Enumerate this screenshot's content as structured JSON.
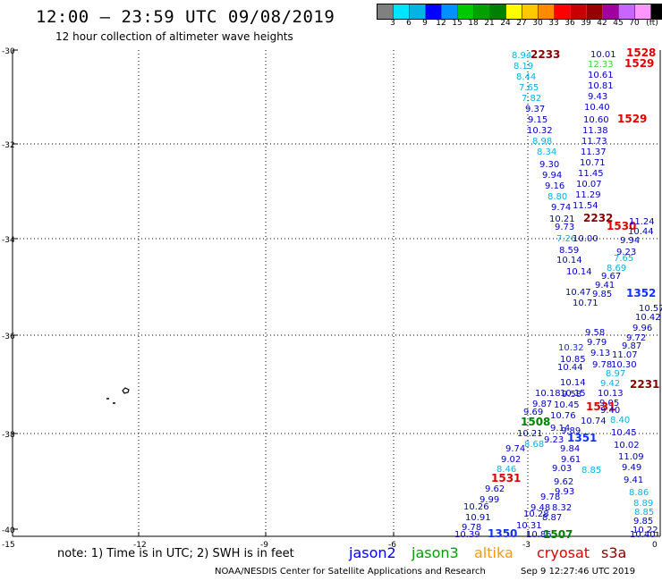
{
  "header": {
    "title": "12:00 — 23:59 UTC 09/08/2019",
    "subtitle": "12 hour collection of altimeter wave heights"
  },
  "legend": {
    "colors": [
      "#808080",
      "#00e5ff",
      "#00b4e6",
      "#0000ff",
      "#0090ff",
      "#00c800",
      "#00a000",
      "#008000",
      "#ffff00",
      "#ffc800",
      "#ff8c00",
      "#ff0000",
      "#c80000",
      "#960000",
      "#a000a0",
      "#c864ff",
      "#ff96ff",
      "#000000"
    ],
    "labels": [
      "3",
      "6",
      "9",
      "12",
      "15",
      "18",
      "21",
      "24",
      "27",
      "30",
      "33",
      "36",
      "39",
      "42",
      "45",
      "70",
      "(ft)"
    ]
  },
  "axes": {
    "lat_labels": [
      "-30",
      "-32",
      "-34",
      "-36",
      "-38",
      "-40"
    ],
    "lon_labels": [
      "-15",
      "-12",
      "-9",
      "-6",
      "-3",
      "0"
    ]
  },
  "colors": {
    "c9": "#00b4e6",
    "c12": "#0000c8",
    "c15": "#1030ff",
    "green": "#40d040",
    "dkgreen": "#008000",
    "red": "#e00000",
    "dkred": "#8b0000"
  },
  "observations": [
    {
      "t": "8.94",
      "c": "c9"
    },
    {
      "t": "2233",
      "c": "dkred"
    },
    {
      "t": "10.01",
      "c": "c12"
    },
    {
      "t": "1528",
      "c": "red"
    },
    {
      "t": "8.19",
      "c": "c9"
    },
    {
      "t": "12.33",
      "c": "green"
    },
    {
      "t": "1529",
      "c": "red"
    },
    {
      "t": "8.44",
      "c": "c9"
    },
    {
      "t": "10.61",
      "c": "c12"
    },
    {
      "t": "7.65",
      "c": "c9"
    },
    {
      "t": "10.81",
      "c": "c12"
    },
    {
      "t": "7.82",
      "c": "c9"
    },
    {
      "t": "9.43",
      "c": "c12"
    },
    {
      "t": "9.37",
      "c": "c12"
    },
    {
      "t": "10.40",
      "c": "c12"
    },
    {
      "t": "9.15",
      "c": "c12"
    },
    {
      "t": "10.60",
      "c": "c12"
    },
    {
      "t": "1529",
      "c": "red"
    },
    {
      "t": "10.32",
      "c": "c12"
    },
    {
      "t": "11.38",
      "c": "c12"
    },
    {
      "t": "8.98",
      "c": "c9"
    },
    {
      "t": "11.73",
      "c": "c12"
    },
    {
      "t": "8.34",
      "c": "c9"
    },
    {
      "t": "11.37",
      "c": "c12"
    },
    {
      "t": "9.30",
      "c": "c12"
    },
    {
      "t": "10.71",
      "c": "c12"
    },
    {
      "t": "9.94",
      "c": "c12"
    },
    {
      "t": "11.45",
      "c": "c12"
    },
    {
      "t": "9.16",
      "c": "c12"
    },
    {
      "t": "10.07",
      "c": "c12"
    },
    {
      "t": "8.80",
      "c": "c9"
    },
    {
      "t": "11.29",
      "c": "c12"
    },
    {
      "t": "9.74",
      "c": "c12"
    },
    {
      "t": "11.54",
      "c": "c12"
    },
    {
      "t": "10.21",
      "c": "c12"
    },
    {
      "t": "2232",
      "c": "dkred"
    },
    {
      "t": "9.73",
      "c": "c12"
    },
    {
      "t": "1530",
      "c": "red"
    },
    {
      "t": "11.24",
      "c": "c12"
    },
    {
      "t": "7.26",
      "c": "c9"
    },
    {
      "t": "10.44",
      "c": "c12"
    },
    {
      "t": "10.00",
      "c": "c12"
    },
    {
      "t": "9.94",
      "c": "c12"
    },
    {
      "t": "8.59",
      "c": "c12"
    },
    {
      "t": "9.23",
      "c": "c12"
    },
    {
      "t": "10.14",
      "c": "c12"
    },
    {
      "t": "7.65",
      "c": "c9"
    },
    {
      "t": "8.69",
      "c": "c9"
    },
    {
      "t": "10.14",
      "c": "c12"
    },
    {
      "t": "9.67",
      "c": "c12"
    },
    {
      "t": "9.41",
      "c": "c12"
    },
    {
      "t": "10.47",
      "c": "c12"
    },
    {
      "t": "9.85",
      "c": "c12"
    },
    {
      "t": "1352",
      "c": "c15"
    },
    {
      "t": "10.71",
      "c": "c12"
    },
    {
      "t": "10.57",
      "c": "c12"
    },
    {
      "t": "10.42",
      "c": "c12"
    },
    {
      "t": "9.96",
      "c": "c12"
    },
    {
      "t": "9.58",
      "c": "c12"
    },
    {
      "t": "9.72",
      "c": "c12"
    },
    {
      "t": "9.79",
      "c": "c12"
    },
    {
      "t": "9.87",
      "c": "c12"
    },
    {
      "t": "10.32",
      "c": "c15"
    },
    {
      "t": "9.13",
      "c": "c12"
    },
    {
      "t": "11.07",
      "c": "c12"
    },
    {
      "t": "10.85",
      "c": "c12"
    },
    {
      "t": "9.78",
      "c": "c12"
    },
    {
      "t": "10.30",
      "c": "c12"
    },
    {
      "t": "10.44",
      "c": "c12"
    },
    {
      "t": "8.97",
      "c": "c9"
    },
    {
      "t": "10.14",
      "c": "c12"
    },
    {
      "t": "9.58",
      "c": "c12"
    },
    {
      "t": "9.42",
      "c": "c9"
    },
    {
      "t": "2231",
      "c": "dkred"
    },
    {
      "t": "10.18",
      "c": "c12"
    },
    {
      "t": "10.15",
      "c": "c12"
    },
    {
      "t": "10.13",
      "c": "c12"
    },
    {
      "t": "9.05",
      "c": "c12"
    },
    {
      "t": "9.87",
      "c": "c12"
    },
    {
      "t": "10.45",
      "c": "c12"
    },
    {
      "t": "1531",
      "c": "red"
    },
    {
      "t": "9.40",
      "c": "c12"
    },
    {
      "t": "9.69",
      "c": "c12"
    },
    {
      "t": "10.76",
      "c": "c12"
    },
    {
      "t": "10.74",
      "c": "c12"
    },
    {
      "t": "8.40",
      "c": "c9"
    },
    {
      "t": "1508",
      "c": "dkgreen"
    },
    {
      "t": "9.14",
      "c": "c12"
    },
    {
      "t": "10.21",
      "c": "c12"
    },
    {
      "t": "9.89",
      "c": "c12"
    },
    {
      "t": "10.45",
      "c": "c12"
    },
    {
      "t": "8.68",
      "c": "c9"
    },
    {
      "t": "9.23",
      "c": "c12"
    },
    {
      "t": "1351",
      "c": "c15"
    },
    {
      "t": "10.02",
      "c": "c12"
    },
    {
      "t": "9.74",
      "c": "c12"
    },
    {
      "t": "9.84",
      "c": "c12"
    },
    {
      "t": "11.09",
      "c": "c12"
    },
    {
      "t": "9.02",
      "c": "c12"
    },
    {
      "t": "9.61",
      "c": "c12"
    },
    {
      "t": "9.49",
      "c": "c12"
    },
    {
      "t": "8.46",
      "c": "c9"
    },
    {
      "t": "9.03",
      "c": "c12"
    },
    {
      "t": "8.85",
      "c": "c9"
    },
    {
      "t": "1531",
      "c": "red"
    },
    {
      "t": "9.62",
      "c": "c12"
    },
    {
      "t": "9.41",
      "c": "c12"
    },
    {
      "t": "9.62",
      "c": "c12"
    },
    {
      "t": "9.93",
      "c": "c12"
    },
    {
      "t": "8.86",
      "c": "c9"
    },
    {
      "t": "9.99",
      "c": "c12"
    },
    {
      "t": "9.78",
      "c": "c12"
    },
    {
      "t": "8.89",
      "c": "c9"
    },
    {
      "t": "10.26",
      "c": "c12"
    },
    {
      "t": "9.48",
      "c": "c12"
    },
    {
      "t": "8.32",
      "c": "c12"
    },
    {
      "t": "8.85",
      "c": "c9"
    },
    {
      "t": "10.91",
      "c": "c12"
    },
    {
      "t": "10.28",
      "c": "c12"
    },
    {
      "t": "8.87",
      "c": "c12"
    },
    {
      "t": "9.85",
      "c": "c12"
    },
    {
      "t": "9.78",
      "c": "c12"
    },
    {
      "t": "10.31",
      "c": "c12"
    },
    {
      "t": "10.22",
      "c": "c12"
    },
    {
      "t": "10.39",
      "c": "c12"
    },
    {
      "t": "1350",
      "c": "c15"
    },
    {
      "t": "10.85",
      "c": "c12"
    },
    {
      "t": "1507",
      "c": "dkgreen"
    },
    {
      "t": "10.40",
      "c": "c12"
    }
  ],
  "footer": {
    "note": "note:  1) Time is in UTC;  2) SWH is in feet",
    "satellites": [
      {
        "name": "jason2",
        "color": "#0000ff"
      },
      {
        "name": "jason3",
        "color": "#00a000"
      },
      {
        "name": "altika",
        "color": "#ff9900"
      },
      {
        "name": "cryosat",
        "color": "#e00000"
      },
      {
        "name": "s3a",
        "color": "#8b0000"
      }
    ],
    "credit": "NOAA/NESDIS Center for Satellite Applications and Research",
    "timestamp": "Sep  9 12:27:46 UTC 2019"
  }
}
